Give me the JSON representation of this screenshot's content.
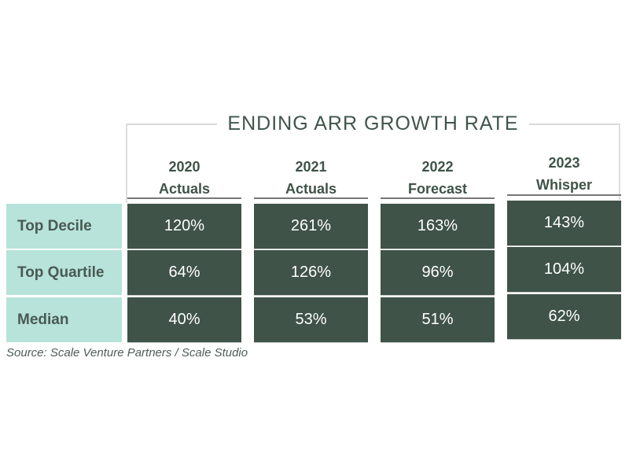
{
  "title": "ENDING ARR GROWTH RATE",
  "columns": [
    {
      "year": "2020",
      "label": "Actuals"
    },
    {
      "year": "2021",
      "label": "Actuals"
    },
    {
      "year": "2022",
      "label": "Forecast"
    },
    {
      "year": "2023",
      "label": "Whisper"
    }
  ],
  "rows": [
    {
      "label": "Top Decile",
      "values": [
        "120%",
        "261%",
        "163%",
        "143%"
      ]
    },
    {
      "label": "Top Quartile",
      "values": [
        "64%",
        "126%",
        "96%",
        "104%"
      ]
    },
    {
      "label": "Median",
      "values": [
        "40%",
        "53%",
        "51%",
        "62%"
      ]
    }
  ],
  "source": "Source: Scale Venture Partners / Scale Studio",
  "colors": {
    "cell_green": "#3f5348",
    "mint": "#b7e3da",
    "title_green": "#40554b",
    "bracket_gray": "#d9d9d9",
    "underline_gray": "#777777",
    "value_text": "#ffffff"
  },
  "chart_data": {
    "type": "table",
    "title": "ENDING ARR GROWTH RATE",
    "categories": [
      "2020 Actuals",
      "2021 Actuals",
      "2022 Forecast",
      "2023 Whisper"
    ],
    "series": [
      {
        "name": "Top Decile",
        "values": [
          120,
          261,
          163,
          143
        ]
      },
      {
        "name": "Top Quartile",
        "values": [
          64,
          126,
          96,
          104
        ]
      },
      {
        "name": "Median",
        "values": [
          40,
          53,
          51,
          62
        ]
      }
    ],
    "unit": "%",
    "source": "Source: Scale Venture Partners / Scale Studio"
  }
}
